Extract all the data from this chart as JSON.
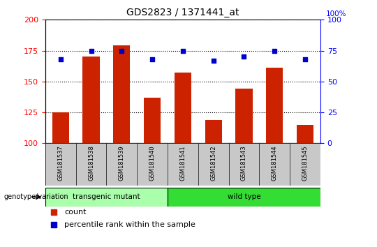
{
  "title": "GDS2823 / 1371441_at",
  "samples": [
    "GSM181537",
    "GSM181538",
    "GSM181539",
    "GSM181540",
    "GSM181541",
    "GSM181542",
    "GSM181543",
    "GSM181544",
    "GSM181545"
  ],
  "counts": [
    125,
    170,
    179,
    137,
    157,
    119,
    144,
    161,
    115
  ],
  "percentile_ranks": [
    68,
    75,
    75,
    68,
    75,
    67,
    70,
    75,
    68
  ],
  "ylim_left": [
    100,
    200
  ],
  "ylim_right": [
    0,
    100
  ],
  "yticks_left": [
    100,
    125,
    150,
    175,
    200
  ],
  "yticks_right": [
    0,
    25,
    50,
    75,
    100
  ],
  "bar_color": "#cc2200",
  "dot_color": "#0000cc",
  "transgenic_mutant_indices": [
    0,
    1,
    2,
    3
  ],
  "wild_type_indices": [
    4,
    5,
    6,
    7,
    8
  ],
  "transgenic_color": "#aaffaa",
  "wild_type_color": "#33dd33",
  "label_bg_color": "#c8c8c8",
  "legend_count_label": "count",
  "legend_pct_label": "percentile rank within the sample",
  "genotype_label": "genotype/variation"
}
